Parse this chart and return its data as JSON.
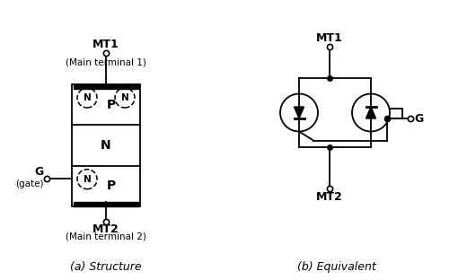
{
  "bg_color": "#ffffff",
  "line_color": "#000000",
  "label_a": "(a) Structure",
  "label_b": "(b) Equivalent",
  "mt1_label": "MT1",
  "mt1_sub": "(Main terminal 1)",
  "mt2_label": "MT2",
  "mt2_sub": "(Main terminal 2)",
  "g_label": "G",
  "g_sub": "(gate)",
  "mt1b_label": "MT1",
  "mt2b_label": "MT2",
  "gb_label": "G",
  "fig_width": 5.2,
  "fig_height": 3.12,
  "dpi": 100
}
